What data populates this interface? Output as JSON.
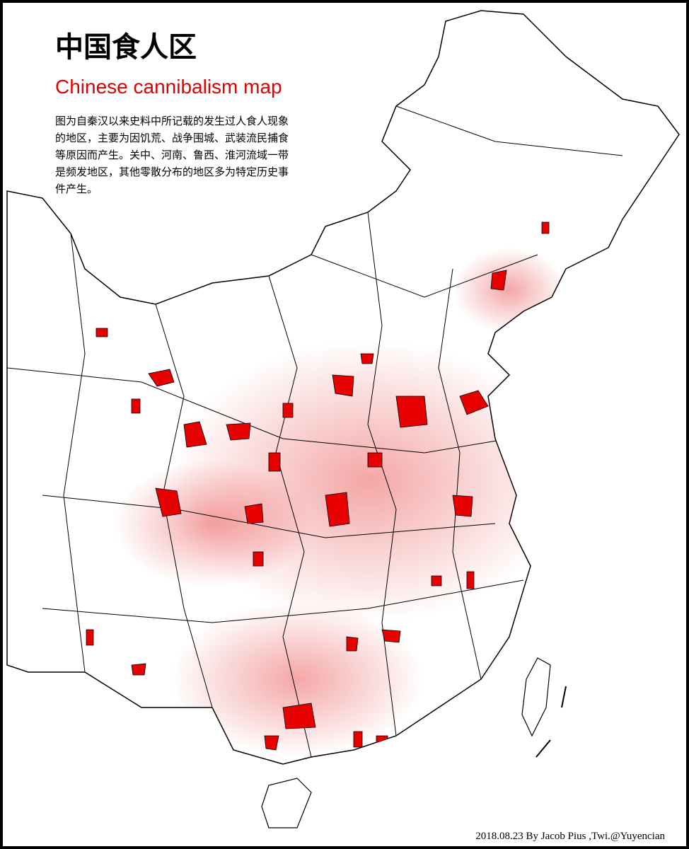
{
  "title": "中国食人区",
  "subtitle": "Chinese cannibalism map",
  "description": [
    "图为自秦汉以来史料中所记载的发生过人食人现象",
    "的地区，主要为因饥荒、战争围城、武装流民捕食",
    "等原因而产生。关中、河南、鲁西、淮河流域一带",
    "是频发地区，其他零散分布的地区多为特定历史事",
    "件产生。"
  ],
  "credit": "2018.08.23 By Jacob Pius ,Twi.@Yuyencian"
}
